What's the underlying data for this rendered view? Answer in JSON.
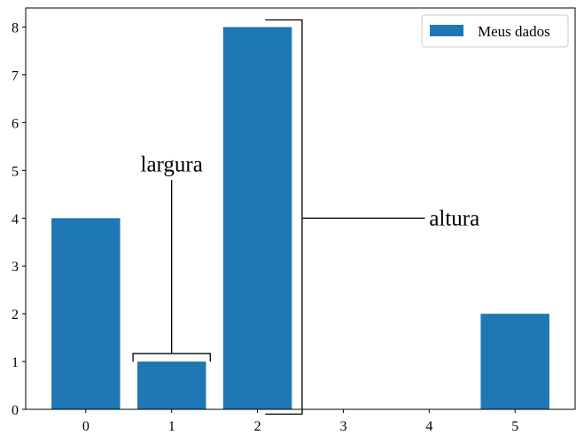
{
  "chart_data": {
    "type": "bar",
    "categories": [
      "0",
      "1",
      "2",
      "3",
      "4",
      "5"
    ],
    "x": [
      0,
      1,
      2,
      3,
      4,
      5
    ],
    "series": [
      {
        "name": "Meus dados",
        "values": [
          4,
          1,
          8,
          0,
          0,
          2
        ],
        "color": "#1f77b4"
      }
    ],
    "yticks": [
      "0",
      "1",
      "2",
      "3",
      "4",
      "5",
      "6",
      "7",
      "8"
    ],
    "ylim": [
      0,
      8.4
    ],
    "xlim": [
      -0.7,
      5.7
    ],
    "bar_width": 0.8,
    "grid": false,
    "legend": {
      "placement": "top-right",
      "entries": [
        "Meus dados"
      ]
    },
    "annotations": [
      {
        "text": "largura",
        "describes": "bar width",
        "bar_index": 1
      },
      {
        "text": "altura",
        "describes": "bar height",
        "bar_index": 2
      }
    ],
    "title": "",
    "xlabel": "",
    "ylabel": ""
  }
}
